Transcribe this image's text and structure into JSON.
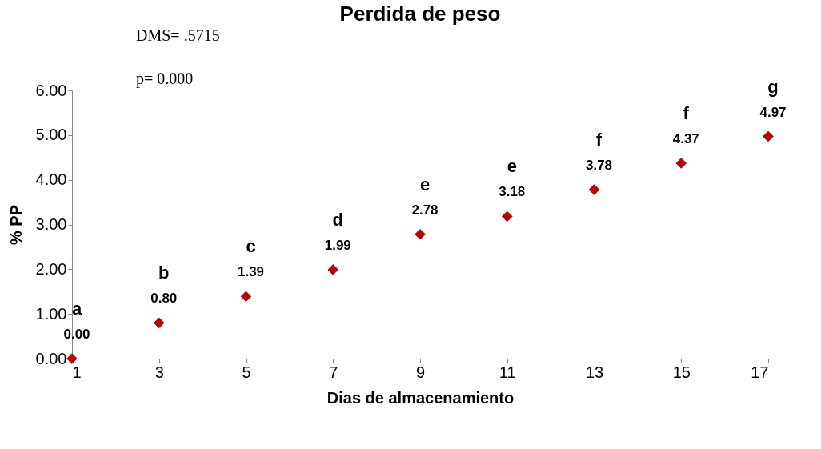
{
  "chart_data": {
    "type": "scatter",
    "title": "Perdida de peso",
    "xlabel": "Dias de almacenamiento",
    "ylabel": "% PP",
    "x": [
      1,
      3,
      5,
      7,
      9,
      11,
      13,
      15,
      17
    ],
    "series": [
      {
        "color": "#c00000",
        "values": [
          0.0,
          0.8,
          1.39,
          1.99,
          2.78,
          3.18,
          3.78,
          4.37,
          4.97
        ]
      }
    ],
    "value_labels": [
      "0.00",
      "0.80",
      "1.39",
      "1.99",
      "2.78",
      "3.18",
      "3.78",
      "4.37",
      "4.97"
    ],
    "marker": "diamond",
    "grid": false,
    "xlim": [
      1,
      17
    ],
    "xticks": [
      1,
      3,
      5,
      7,
      9,
      11,
      13,
      15,
      17
    ],
    "ylim": [
      0,
      6
    ],
    "yticks": [
      {
        "value": 0,
        "label": "0.00"
      },
      {
        "value": 1,
        "label": "1.00"
      },
      {
        "value": 2,
        "label": "2.00"
      },
      {
        "value": 3,
        "label": "3.00"
      },
      {
        "value": 4,
        "label": "4.00"
      },
      {
        "value": 5,
        "label": "5.00"
      },
      {
        "value": 6,
        "label": "6.00"
      }
    ],
    "annotations": [
      "DMS= .5715",
      "p= 0.000",
      {
        "text": "a",
        "x": 1,
        "y": 0.0
      },
      {
        "text": "b",
        "x": 3,
        "y": 0.8
      },
      {
        "text": "c",
        "x": 5,
        "y": 1.39
      },
      {
        "text": "d",
        "x": 7,
        "y": 1.99
      },
      {
        "text": "e",
        "x": 9,
        "y": 2.78
      },
      {
        "text": "e",
        "x": 11,
        "y": 3.18
      },
      {
        "text": "f",
        "x": 13,
        "y": 3.78
      },
      {
        "text": "f",
        "x": 15,
        "y": 4.37
      },
      {
        "text": "g",
        "x": 17,
        "y": 4.97
      }
    ]
  }
}
